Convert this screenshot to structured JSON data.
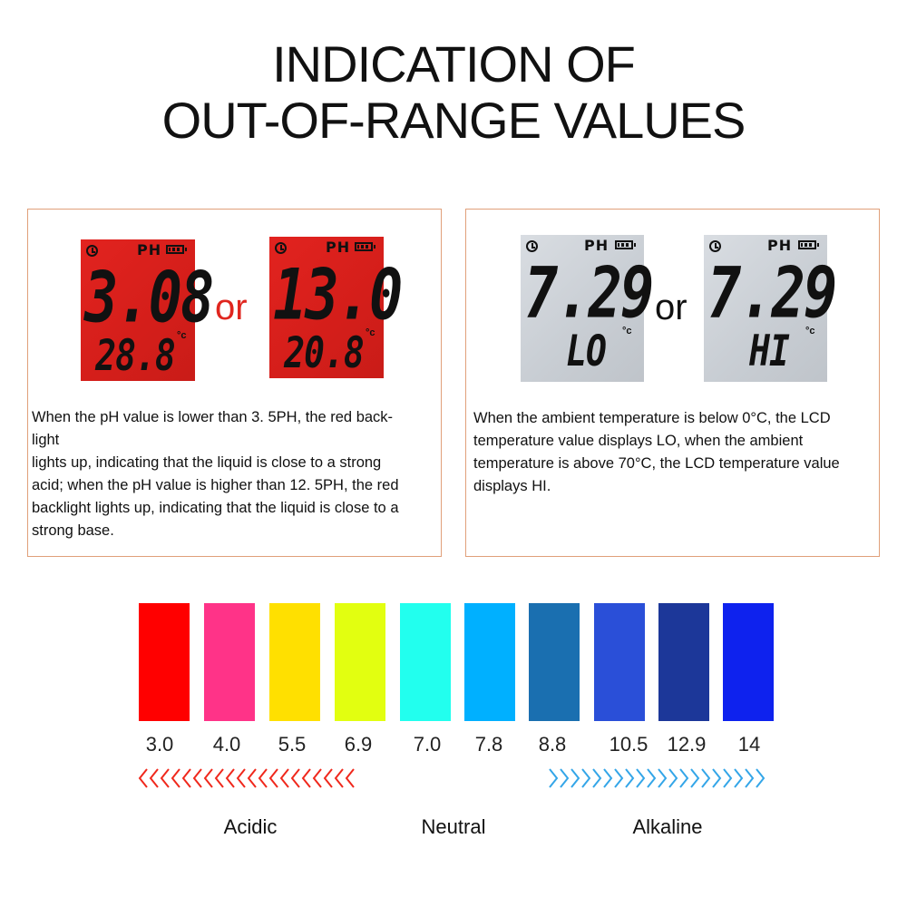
{
  "title": {
    "line1": "INDICATION OF",
    "line2": "OUT-OF-RANGE VALUES"
  },
  "left_panel": {
    "lcd1": {
      "unit": "PH",
      "main": "3.08",
      "sub": "28.8",
      "deg": "°c"
    },
    "or": "or",
    "lcd2": {
      "unit": "PH",
      "main": "13.0",
      "sub": "20.8",
      "deg": "°c"
    },
    "desc_lines": [
      "When the pH value is lower than 3. 5PH, the red back-",
      "light",
      "lights up, indicating that the liquid is close to a strong",
      "acid; when the pH value is higher than 12. 5PH, the red",
      "backlight lights up, indicating that the liquid is close to a",
      "strong base."
    ]
  },
  "right_panel": {
    "lcd1": {
      "unit": "PH",
      "main": "7.29",
      "sub": "LO",
      "deg": "°c"
    },
    "or": "or",
    "lcd2": {
      "unit": "PH",
      "main": "7.29",
      "sub": "HI",
      "deg": "°c"
    },
    "desc_lines": [
      "When the ambient temperature is below 0°C, the LCD",
      "temperature value displays LO, when the ambient",
      "temperature is above 70°C, the LCD temperature value",
      "displays HI."
    ]
  },
  "ph_scale": {
    "swatches": [
      {
        "value": "3.0",
        "color": "#ff0000"
      },
      {
        "value": "4.0",
        "color": "#ff3388"
      },
      {
        "value": "5.5",
        "color": "#ffe000"
      },
      {
        "value": "6.9",
        "color": "#e2ff10"
      },
      {
        "value": "7.0",
        "color": "#22ffee"
      },
      {
        "value": "7.8",
        "color": "#00b0ff"
      },
      {
        "value": "8.8",
        "color": "#1a6fb0"
      },
      {
        "value": "10.5",
        "color": "#2a4fd8"
      },
      {
        "value": "12.9",
        "color": "#1c3799"
      },
      {
        "value": "14",
        "color": "#0e22ee"
      }
    ],
    "categories": {
      "acidic": "Acidic",
      "neutral": "Neutral",
      "alkaline": "Alkaline"
    },
    "arrow_colors": {
      "acidic": "#f0281c",
      "alkaline": "#34a6e8"
    }
  }
}
